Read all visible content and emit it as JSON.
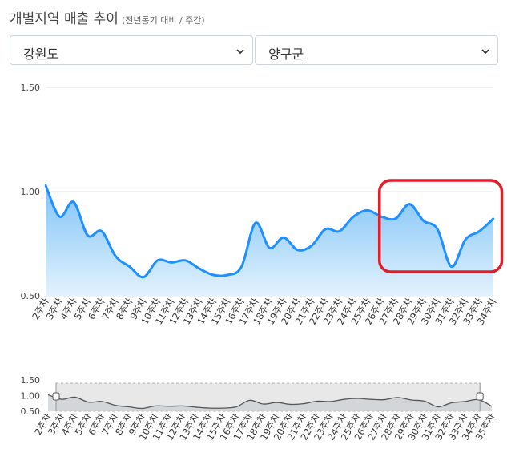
{
  "header": {
    "title": "개별지역 매출 추이",
    "subtitle": "(전년동기 대비 / 주간)"
  },
  "filters": {
    "province": {
      "value": "강원도"
    },
    "county": {
      "value": "양구군"
    }
  },
  "colors": {
    "line": "#1e90ff",
    "area_top": "#7ec3f7",
    "area_bottom": "#e3f2fd",
    "highlight": "#e11d2a",
    "navigator_line": "#555555",
    "navigator_fill": "#c9ced3"
  },
  "chart_data": {
    "type": "area",
    "y_ticks": [
      "1.50",
      "1.00",
      "0.50"
    ],
    "ylim": [
      0.5,
      1.5
    ],
    "grid": true,
    "x": [
      "2주차",
      "3주차",
      "4주차",
      "5주차",
      "6주차",
      "7주차",
      "8주차",
      "9주차",
      "10주차",
      "11주차",
      "12주차",
      "13주차",
      "14주차",
      "15주차",
      "16주차",
      "17주차",
      "18주차",
      "19주차",
      "20주차",
      "21주차",
      "22주차",
      "23주차",
      "24주차",
      "25주차",
      "26주차",
      "27주차",
      "28주차",
      "29주차",
      "30주차",
      "31주차",
      "32주차",
      "33주차",
      "34주차"
    ],
    "series": [
      {
        "values": [
          1.03,
          0.88,
          0.95,
          0.79,
          0.81,
          0.69,
          0.64,
          0.59,
          0.67,
          0.66,
          0.67,
          0.63,
          0.6,
          0.6,
          0.64,
          0.85,
          0.73,
          0.78,
          0.72,
          0.74,
          0.82,
          0.81,
          0.88,
          0.91,
          0.88,
          0.87,
          0.94,
          0.86,
          0.82,
          0.64,
          0.77,
          0.81,
          0.87
        ]
      }
    ],
    "highlight_range": [
      "27주차",
      "33주차"
    ],
    "navigator": {
      "y_ticks": [
        "1.50",
        "1.00",
        "0.50"
      ],
      "x": [
        "2주차",
        "3주차",
        "4주차",
        "5주차",
        "6주차",
        "7주차",
        "8주차",
        "9주차",
        "10주차",
        "11주차",
        "12주차",
        "13주차",
        "14주차",
        "15주차",
        "16주차",
        "17주차",
        "18주차",
        "19주차",
        "20주차",
        "21주차",
        "22주차",
        "23주차",
        "24주차",
        "25주차",
        "26주차",
        "27주차",
        "28주차",
        "29주차",
        "30주차",
        "31주차",
        "32주차",
        "33주차",
        "34주차",
        "35주차"
      ],
      "values": [
        1.03,
        0.88,
        0.95,
        0.79,
        0.81,
        0.69,
        0.64,
        0.59,
        0.67,
        0.66,
        0.67,
        0.63,
        0.6,
        0.6,
        0.64,
        0.85,
        0.73,
        0.78,
        0.72,
        0.74,
        0.82,
        0.81,
        0.88,
        0.91,
        0.88,
        0.87,
        0.94,
        0.86,
        0.82,
        0.64,
        0.77,
        0.81,
        0.87,
        0.66
      ],
      "selected_range": [
        "2주차",
        "34주차"
      ]
    }
  }
}
